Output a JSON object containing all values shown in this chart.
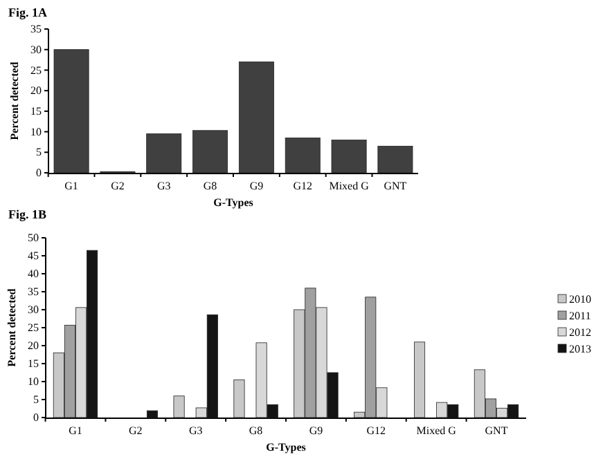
{
  "chart_data": [
    {
      "type": "bar",
      "title": "Fig. 1A",
      "xlabel": "G-Types",
      "ylabel": "Percent detected",
      "categories": [
        "G1",
        "G2",
        "G3",
        "G8",
        "G9",
        "G12",
        "Mixed G",
        "GNT"
      ],
      "values": [
        30,
        0.3,
        9.5,
        10.3,
        27,
        8.5,
        8,
        6.5
      ],
      "color": "#404040",
      "ylim": [
        0,
        35
      ],
      "yticks": [
        0,
        5,
        10,
        15,
        20,
        25,
        30,
        35
      ],
      "grid": false
    },
    {
      "type": "bar",
      "title": "Fig. 1B",
      "xlabel": "G-Types",
      "ylabel": "Percent detected",
      "categories": [
        "G1",
        "G2",
        "G3",
        "G8",
        "G9",
        "G12",
        "Mixed G",
        "GNT"
      ],
      "series": [
        {
          "name": "2010",
          "color": "#c8c8c8",
          "values": [
            18,
            0,
            6,
            10.5,
            30,
            1.5,
            21,
            13.3
          ]
        },
        {
          "name": "2011",
          "color": "#a0a0a0",
          "values": [
            25.7,
            0,
            0,
            0,
            36,
            33.5,
            0,
            5.2
          ]
        },
        {
          "name": "2012",
          "color": "#d8d8d8",
          "values": [
            30.6,
            0,
            2.7,
            20.8,
            30.6,
            8.3,
            4.2,
            2.6
          ]
        },
        {
          "name": "2013",
          "color": "#141414",
          "values": [
            46.5,
            1.9,
            28.6,
            3.6,
            12.5,
            0,
            3.6,
            3.6
          ]
        }
      ],
      "ylim": [
        0,
        50
      ],
      "yticks": [
        0,
        5,
        10,
        15,
        20,
        25,
        30,
        35,
        40,
        45,
        50
      ],
      "grid": false,
      "legend": "right"
    }
  ]
}
